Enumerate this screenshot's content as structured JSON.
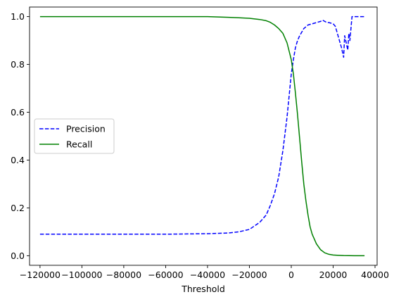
{
  "chart_data": {
    "type": "line",
    "xlabel": "Threshold",
    "ylabel": "",
    "xlim": [
      -125000,
      41000
    ],
    "ylim": [
      -0.04,
      1.04
    ],
    "x_ticks": [
      -120000,
      -100000,
      -80000,
      -60000,
      -40000,
      -20000,
      0,
      20000,
      40000
    ],
    "x_tick_labels": [
      "−120000",
      "−100000",
      "−80000",
      "−60000",
      "−40000",
      "−20000",
      "0",
      "20000",
      "40000"
    ],
    "y_ticks": [
      0.0,
      0.2,
      0.4,
      0.6,
      0.8,
      1.0
    ],
    "y_tick_labels": [
      "0.0",
      "0.2",
      "0.4",
      "0.6",
      "0.8",
      "1.0"
    ],
    "grid": false,
    "legend_position": "center-left",
    "series": [
      {
        "name": "Precision",
        "color": "#0000ff",
        "style": "dashed",
        "x": [
          -120000,
          -100000,
          -80000,
          -60000,
          -40000,
          -30000,
          -25000,
          -20000,
          -15000,
          -12000,
          -10000,
          -8000,
          -6000,
          -4000,
          -2000,
          -1000,
          0,
          1000,
          2000,
          3000,
          4000,
          6000,
          8000,
          10000,
          12000,
          14000,
          15000,
          16000,
          17000,
          18000,
          20000,
          21000,
          22000,
          23000,
          24000,
          25000,
          25500,
          26000,
          27000,
          27500,
          28000,
          29000,
          29500,
          30000,
          31000,
          32000,
          33000,
          34000,
          35000
        ],
        "y": [
          0.09,
          0.09,
          0.09,
          0.09,
          0.092,
          0.095,
          0.1,
          0.11,
          0.14,
          0.17,
          0.21,
          0.26,
          0.33,
          0.44,
          0.58,
          0.67,
          0.76,
          0.82,
          0.87,
          0.9,
          0.92,
          0.95,
          0.965,
          0.97,
          0.975,
          0.98,
          0.985,
          0.98,
          0.975,
          0.975,
          0.97,
          0.96,
          0.93,
          0.9,
          0.87,
          0.83,
          0.92,
          0.9,
          0.86,
          0.93,
          0.9,
          1.0,
          1.0,
          1.0,
          1.0,
          1.0,
          1.0,
          1.0,
          1.0
        ]
      },
      {
        "name": "Recall",
        "color": "#008000",
        "style": "solid",
        "x": [
          -120000,
          -100000,
          -80000,
          -60000,
          -40000,
          -30000,
          -25000,
          -20000,
          -15000,
          -12000,
          -10000,
          -8000,
          -6000,
          -4000,
          -2000,
          0,
          1000,
          2000,
          3000,
          4000,
          5000,
          6000,
          7000,
          8000,
          9000,
          10000,
          12000,
          14000,
          16000,
          18000,
          20000,
          22000,
          25000,
          30000,
          35000
        ],
        "y": [
          1.0,
          1.0,
          1.0,
          1.0,
          1.0,
          0.997,
          0.995,
          0.993,
          0.988,
          0.983,
          0.976,
          0.965,
          0.95,
          0.93,
          0.89,
          0.82,
          0.76,
          0.68,
          0.59,
          0.49,
          0.39,
          0.3,
          0.23,
          0.17,
          0.12,
          0.09,
          0.05,
          0.025,
          0.012,
          0.006,
          0.003,
          0.002,
          0.001,
          0.0,
          0.0
        ]
      }
    ]
  }
}
